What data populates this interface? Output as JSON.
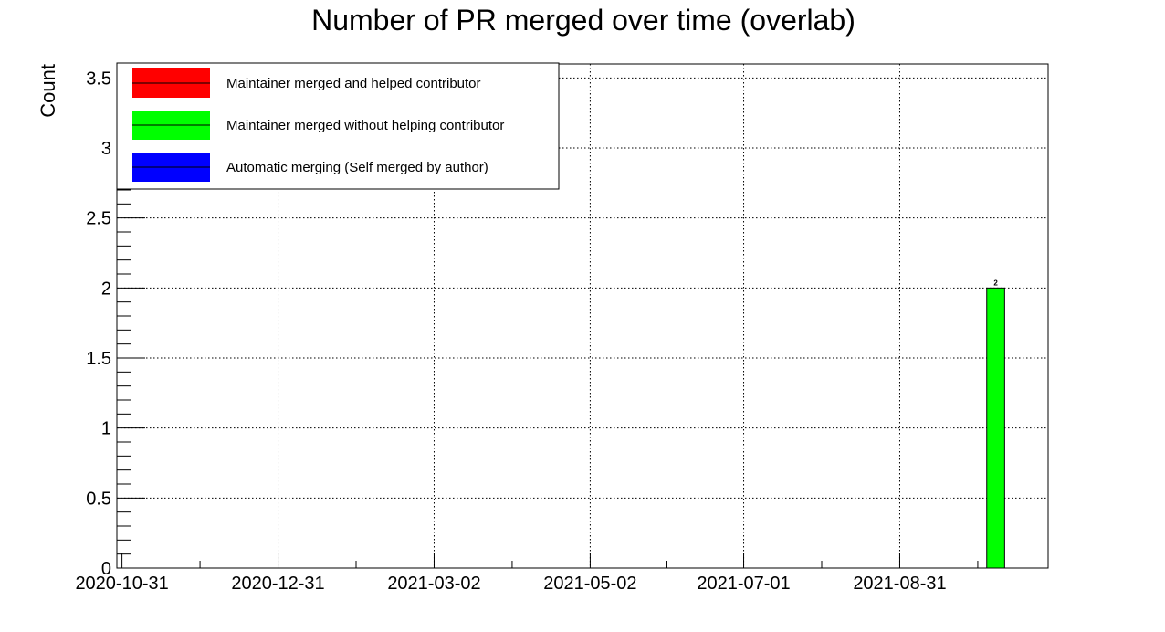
{
  "chart_data": {
    "type": "bar",
    "title": "Number of PR merged over time (overlab)",
    "xlabel": "",
    "ylabel": "Count",
    "x_type": "date",
    "xlim": [
      "2020-10-29",
      "2021-10-28"
    ],
    "ylim": [
      0,
      3.6
    ],
    "x_ticks": [
      "2020-10-31",
      "2020-12-31",
      "2021-03-02",
      "2021-05-02",
      "2021-07-01",
      "2021-08-31"
    ],
    "y_ticks": [
      0,
      0.5,
      1,
      1.5,
      2,
      2.5,
      3,
      3.5
    ],
    "y_tick_labels": [
      "0",
      "0.5",
      "1",
      "1.5",
      "2",
      "2.5",
      "3",
      "3.5"
    ],
    "grid": true,
    "legend_position": "top-left",
    "series": [
      {
        "name": "Maintainer merged and helped contributor",
        "color": "#ff0000",
        "points": []
      },
      {
        "name": "Maintainer merged without helping contributor",
        "color": "#00ff00",
        "points": [
          {
            "x_start": "2021-10-04",
            "x_end": "2021-10-11",
            "y": 2,
            "label": "2"
          }
        ]
      },
      {
        "name": "Automatic merging (Self merged by author)",
        "color": "#0000ff",
        "points": []
      }
    ]
  }
}
